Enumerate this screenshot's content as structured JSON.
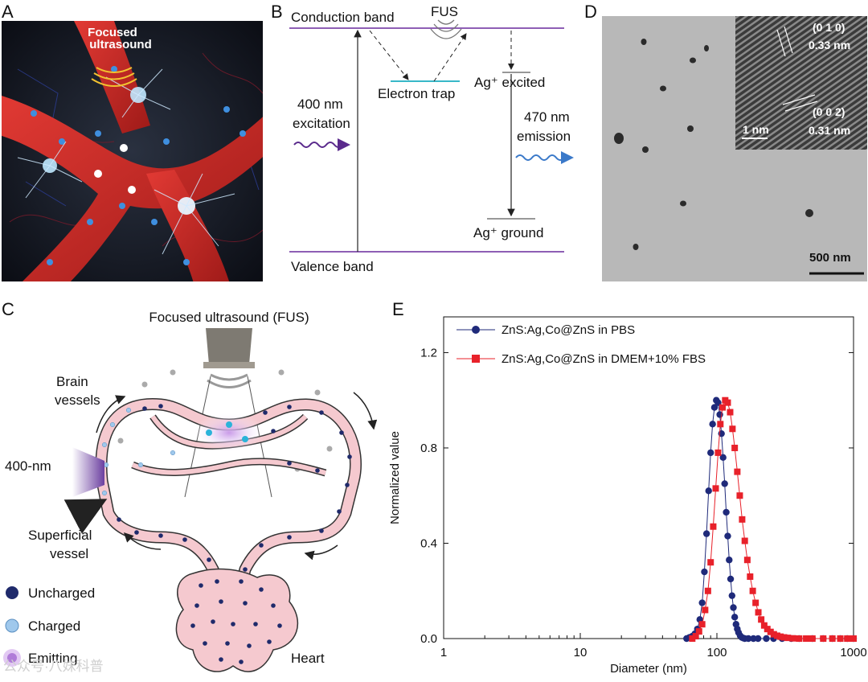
{
  "panels": {
    "A": {
      "letter": "A",
      "fus_label": "Focused\nultrasound"
    },
    "B": {
      "letter": "B",
      "conduction_band": "Conduction band",
      "fus": "FUS",
      "excitation_line1": "400 nm",
      "excitation_line2": "excitation",
      "electron_trap": "Electron trap",
      "ag_excited": "Ag⁺ excited",
      "emission_line1": "470 nm",
      "emission_line2": "emission",
      "ag_ground": "Ag⁺  ground",
      "valence_band": "Valence band",
      "colors": {
        "band": "#8e5fb5",
        "trap": "#38b8c8",
        "excitation": "#5a2a8c",
        "emission": "#3a79c9"
      }
    },
    "D": {
      "letter": "D",
      "inset_label_010": "(0 1 0)",
      "inset_d1": "0.33 nm",
      "inset_label_002": "(0 0 2)",
      "inset_d2": "0.31 nm",
      "inset_scale": "1 nm",
      "scale_bar": "500 nm"
    },
    "C": {
      "letter": "C",
      "title": "Focused ultrasound (FUS)",
      "brain_vessels_1": "Brain",
      "brain_vessels_2": "vessels",
      "excitation": "400-nm",
      "superficial_1": "Superficial",
      "superficial_2": "vessel",
      "heart": "Heart",
      "legend": [
        "Uncharged",
        "Charged",
        "Emitting"
      ],
      "colors": {
        "vessel": "#f5c9cf",
        "vessel_edge": "#333",
        "uncharged": "#1f2a6b",
        "charged": "#9fc8ec",
        "emitting": "#b07cd8"
      }
    },
    "E": {
      "letter": "E"
    }
  },
  "chart_data": {
    "type": "line",
    "xscale": "log",
    "xlabel": "Diameter (nm)",
    "ylabel": "Normalized value",
    "xlim": [
      1,
      1000
    ],
    "ylim": [
      0,
      1.35
    ],
    "xticks": [
      "1",
      "10",
      "100",
      "1000"
    ],
    "yticks": [
      "0.0",
      "0.4",
      "0.8",
      "1.2"
    ],
    "legend_position": "top-left",
    "series": [
      {
        "name": "ZnS:Ag,Co@ZnS in PBS",
        "marker": "circle",
        "color": "#1f2a7a",
        "x": [
          60,
          63,
          66,
          69,
          72,
          75,
          78,
          81,
          84,
          87,
          90,
          93,
          96,
          99,
          102,
          105,
          108,
          111,
          114,
          117,
          120,
          123,
          126,
          129,
          132,
          135,
          138,
          141,
          144,
          148,
          152,
          156,
          160,
          170,
          185,
          200,
          230,
          260,
          300,
          350,
          400,
          500,
          600,
          700,
          800,
          900,
          1000
        ],
        "y": [
          0.0,
          0.005,
          0.01,
          0.02,
          0.04,
          0.08,
          0.15,
          0.28,
          0.44,
          0.62,
          0.78,
          0.9,
          0.97,
          1.0,
          0.99,
          0.94,
          0.86,
          0.76,
          0.65,
          0.53,
          0.43,
          0.33,
          0.25,
          0.18,
          0.13,
          0.09,
          0.06,
          0.04,
          0.025,
          0.012,
          0.005,
          0.002,
          0.0,
          0.0,
          0.0,
          0.0,
          0.0,
          0.0,
          0.0,
          0.0,
          0.0,
          0.0,
          0.0,
          0.0,
          0.0,
          0.0,
          0.0
        ]
      },
      {
        "name": "ZnS:Ag,Co@ZnS in DMEM+10% FBS",
        "marker": "square",
        "color": "#e8212a",
        "x": [
          66,
          70,
          74,
          78,
          82,
          86,
          90,
          94,
          98,
          102,
          106,
          110,
          115,
          120,
          125,
          130,
          135,
          141,
          147,
          153,
          160,
          167,
          175,
          183,
          192,
          201,
          211,
          222,
          234,
          247,
          261,
          276,
          292,
          310,
          330,
          360,
          400,
          450,
          500,
          600,
          700,
          800,
          900,
          1000
        ],
        "y": [
          0.0,
          0.01,
          0.03,
          0.06,
          0.12,
          0.2,
          0.32,
          0.47,
          0.63,
          0.78,
          0.9,
          0.97,
          1.0,
          0.99,
          0.95,
          0.88,
          0.8,
          0.7,
          0.6,
          0.5,
          0.41,
          0.33,
          0.26,
          0.2,
          0.15,
          0.11,
          0.08,
          0.055,
          0.04,
          0.028,
          0.018,
          0.012,
          0.008,
          0.005,
          0.003,
          0.001,
          0.0,
          0.0,
          0.0,
          0.0,
          0.0,
          0.0,
          0.0,
          0.0
        ]
      }
    ]
  },
  "watermark": "公众号·八妹科普"
}
